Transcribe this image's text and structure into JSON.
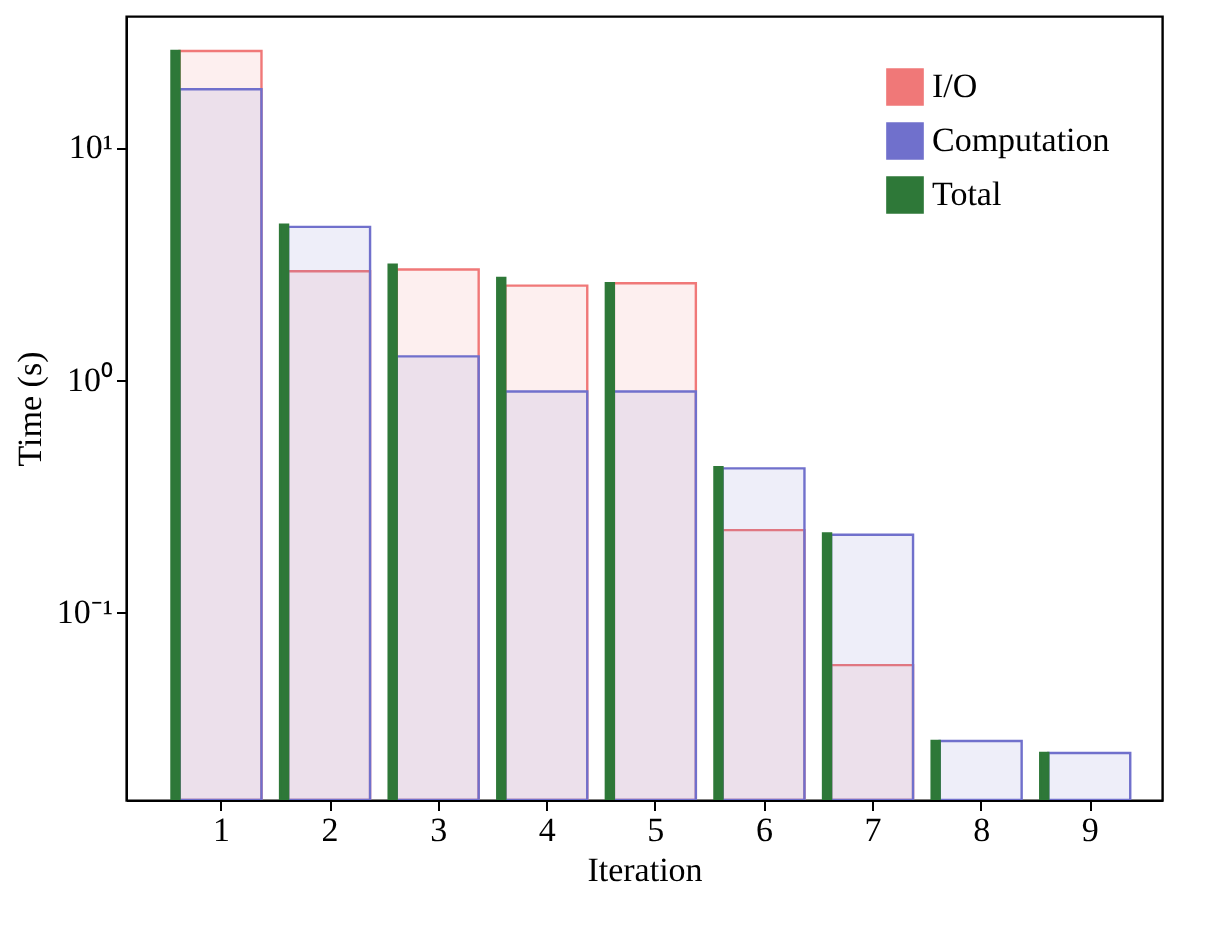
{
  "chart_data": {
    "type": "bar",
    "xlabel": "Iteration",
    "ylabel": "Time (s)",
    "x": [
      1,
      2,
      3,
      4,
      5,
      6,
      7,
      8,
      9
    ],
    "xlim": [
      0.13,
      9.67
    ],
    "xticks": [
      1,
      2,
      3,
      4,
      5,
      6,
      7,
      8,
      9
    ],
    "ylim": [
      0.0155,
      36.8
    ],
    "log": true,
    "yticks": [
      {
        "value": 0.1,
        "label": "10⁻¹"
      },
      {
        "value": 1,
        "label": "10⁰"
      },
      {
        "value": 10,
        "label": "10¹"
      }
    ],
    "grid": false,
    "legend": "top right",
    "series": [
      {
        "name": "I/O",
        "color": "#f07878",
        "values": [
          26,
          2.93,
          2.98,
          2.54,
          2.6,
          0.225,
          0.059,
          null,
          null
        ]
      },
      {
        "name": "Computation",
        "color": "#7070cc",
        "values": [
          17.8,
          4.55,
          1.26,
          0.89,
          0.89,
          0.415,
          0.215,
          0.0278,
          0.0247
        ]
      },
      {
        "name": "Total",
        "color": "#2e7838",
        "values": [
          26,
          4.65,
          3.13,
          2.74,
          2.6,
          0.42,
          0.218,
          0.0278,
          0.0247
        ]
      }
    ]
  }
}
